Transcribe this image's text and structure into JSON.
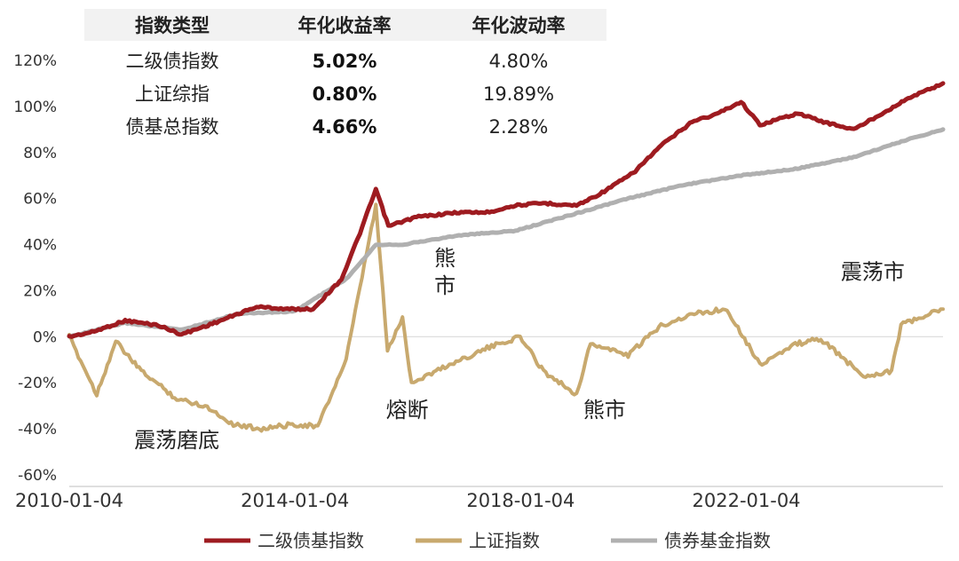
{
  "chart_data": {
    "type": "line",
    "title": "",
    "xlabel": "",
    "ylabel": "",
    "x_ticks": [
      "2010-01-04",
      "2014-01-04",
      "2018-01-04",
      "2022-01-04"
    ],
    "x_range": [
      "2010-01-04",
      "2025-06-30"
    ],
    "y_ticks": [
      "120%",
      "100%",
      "80%",
      "60%",
      "40%",
      "20%",
      "0%",
      "-20%",
      "-40%",
      "-60%"
    ],
    "ylim": [
      -60,
      120
    ],
    "y_unit": "%",
    "grid": false,
    "legend_position": "bottom",
    "series": [
      {
        "name": "二级债基指数",
        "color": "#9e1b20",
        "points": [
          [
            "2010-01-04",
            0
          ],
          [
            "2010-06-01",
            2
          ],
          [
            "2011-01-01",
            7
          ],
          [
            "2011-08-01",
            5
          ],
          [
            "2012-01-01",
            1
          ],
          [
            "2012-08-01",
            6
          ],
          [
            "2013-05-01",
            13
          ],
          [
            "2013-12-01",
            12
          ],
          [
            "2014-05-01",
            12
          ],
          [
            "2014-11-01",
            25
          ],
          [
            "2015-03-01",
            45
          ],
          [
            "2015-06-12",
            64
          ],
          [
            "2015-09-01",
            48
          ],
          [
            "2016-03-01",
            52
          ],
          [
            "2016-12-01",
            54
          ],
          [
            "2017-06-01",
            54
          ],
          [
            "2017-12-01",
            57
          ],
          [
            "2018-06-01",
            58
          ],
          [
            "2019-01-01",
            57
          ],
          [
            "2019-06-01",
            62
          ],
          [
            "2020-01-01",
            71
          ],
          [
            "2020-07-01",
            83
          ],
          [
            "2021-02-01",
            94
          ],
          [
            "2021-06-01",
            96
          ],
          [
            "2021-12-01",
            102
          ],
          [
            "2022-04-01",
            92
          ],
          [
            "2022-12-01",
            97
          ],
          [
            "2023-06-01",
            93
          ],
          [
            "2023-12-01",
            90
          ],
          [
            "2024-06-01",
            97
          ],
          [
            "2024-12-01",
            104
          ],
          [
            "2025-06-30",
            110
          ]
        ]
      },
      {
        "name": "上证指数",
        "color": "#c8a96e",
        "points": [
          [
            "2010-01-04",
            0
          ],
          [
            "2010-07-01",
            -25
          ],
          [
            "2010-11-01",
            -2
          ],
          [
            "2011-04-01",
            -14
          ],
          [
            "2011-12-01",
            -27
          ],
          [
            "2012-06-01",
            -30
          ],
          [
            "2012-12-01",
            -38
          ],
          [
            "2013-06-01",
            -40
          ],
          [
            "2014-01-01",
            -38
          ],
          [
            "2014-06-01",
            -39
          ],
          [
            "2014-12-01",
            -10
          ],
          [
            "2015-06-12",
            57
          ],
          [
            "2015-08-26",
            -6
          ],
          [
            "2015-12-01",
            8
          ],
          [
            "2016-01-28",
            -20
          ],
          [
            "2016-09-01",
            -13
          ],
          [
            "2017-06-01",
            -5
          ],
          [
            "2018-01-01",
            0
          ],
          [
            "2018-06-01",
            -15
          ],
          [
            "2019-01-01",
            -25
          ],
          [
            "2019-04-01",
            -3
          ],
          [
            "2019-12-01",
            -8
          ],
          [
            "2020-07-01",
            5
          ],
          [
            "2021-02-01",
            10
          ],
          [
            "2021-09-01",
            12
          ],
          [
            "2022-04-01",
            -12
          ],
          [
            "2022-12-01",
            -3
          ],
          [
            "2023-05-01",
            -1
          ],
          [
            "2024-02-01",
            -17
          ],
          [
            "2024-08-01",
            -15
          ],
          [
            "2024-10-01",
            5
          ],
          [
            "2025-06-30",
            12
          ]
        ]
      },
      {
        "name": "债券基金指数",
        "color": "#b0b0b0",
        "points": [
          [
            "2010-01-04",
            0
          ],
          [
            "2011-01-01",
            6
          ],
          [
            "2012-01-01",
            3
          ],
          [
            "2013-01-01",
            10
          ],
          [
            "2014-01-01",
            11
          ],
          [
            "2014-12-01",
            25
          ],
          [
            "2015-06-12",
            40
          ],
          [
            "2015-12-01",
            40
          ],
          [
            "2016-12-01",
            44
          ],
          [
            "2017-12-01",
            46
          ],
          [
            "2018-12-01",
            53
          ],
          [
            "2019-12-01",
            60
          ],
          [
            "2020-12-01",
            66
          ],
          [
            "2021-12-01",
            70
          ],
          [
            "2022-12-01",
            73
          ],
          [
            "2023-12-01",
            78
          ],
          [
            "2024-12-01",
            86
          ],
          [
            "2025-06-30",
            90
          ]
        ]
      }
    ],
    "annotations": [
      {
        "text": "震荡磨底",
        "x": "2011-12-01",
        "y": -48
      },
      {
        "text": "熔断",
        "x": "2016-01-01",
        "y": -35
      },
      {
        "text": "熊",
        "x": "2016-09-01",
        "y": 31
      },
      {
        "text": "市",
        "x": "2016-09-01",
        "y": 19
      },
      {
        "text": "熊市",
        "x": "2019-07-01",
        "y": -35
      },
      {
        "text": "震荡市",
        "x": "2024-04-01",
        "y": 25
      }
    ],
    "table": {
      "headers": [
        "指数类型",
        "年化收益率",
        "年化波动率"
      ],
      "rows": [
        [
          "二级债指数",
          "5.02%",
          "4.80%"
        ],
        [
          "上证综指",
          "0.80%",
          "19.89%"
        ],
        [
          "债基总指数",
          "4.66%",
          "2.28%"
        ]
      ]
    }
  }
}
